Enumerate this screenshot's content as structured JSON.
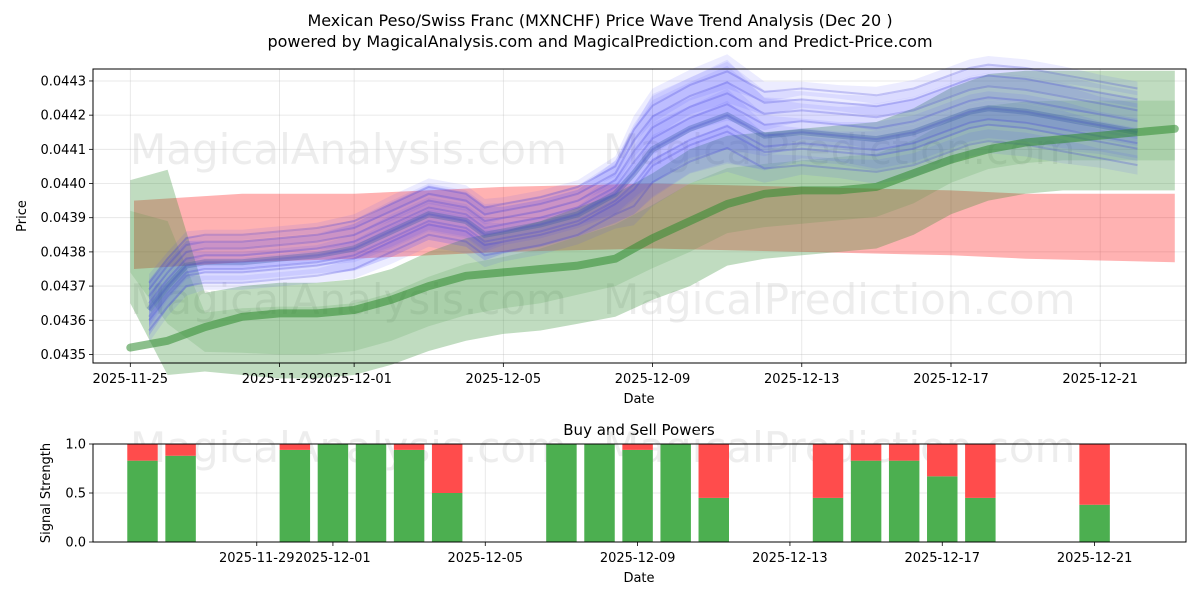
{
  "chart_data": [
    {
      "type": "line",
      "title_line1": "Mexican Peso/Swiss Franc (MXNCHF) Price Wave Trend Analysis (Dec 20 )",
      "title_line2": "powered by MagicalAnalysis.com and MagicalPrediction.com and Predict-Price.com",
      "xlabel": "Date",
      "ylabel": "Price",
      "xlim_day": [
        -1,
        28.3
      ],
      "ylim": [
        0.043475,
        0.044335
      ],
      "x_ticks": [
        {
          "day": 0,
          "label": "2025-11-25"
        },
        {
          "day": 4,
          "label": "2025-11-29"
        },
        {
          "day": 6,
          "label": "2025-12-01"
        },
        {
          "day": 10,
          "label": "2025-12-05"
        },
        {
          "day": 14,
          "label": "2025-12-09"
        },
        {
          "day": 18,
          "label": "2025-12-13"
        },
        {
          "day": 22,
          "label": "2025-12-17"
        },
        {
          "day": 26,
          "label": "2025-12-21"
        }
      ],
      "y_ticks": [
        {
          "value": 0.0435,
          "label": "0.0435"
        },
        {
          "value": 0.0436,
          "label": "0.0436"
        },
        {
          "value": 0.0437,
          "label": "0.0437"
        },
        {
          "value": 0.0438,
          "label": "0.0438"
        },
        {
          "value": 0.0439,
          "label": "0.0439"
        },
        {
          "value": 0.044,
          "label": "0.0440"
        },
        {
          "value": 0.0441,
          "label": "0.0441"
        },
        {
          "value": 0.0442,
          "label": "0.0442"
        },
        {
          "value": 0.0443,
          "label": "0.0443"
        }
      ],
      "series": [
        {
          "name": "Price band (red)",
          "color": "#ff0000",
          "x": [
            0.1,
            3,
            6,
            10,
            14,
            18,
            22,
            24,
            28
          ],
          "upper": [
            0.04395,
            0.04397,
            0.04397,
            0.04399,
            0.044,
            0.04399,
            0.04398,
            0.04397,
            0.04397
          ],
          "lower": [
            0.04375,
            0.04377,
            0.04378,
            0.0438,
            0.04381,
            0.0438,
            0.04379,
            0.04378,
            0.04377
          ]
        },
        {
          "name": "Trend line (green)",
          "color": "#2e8b2e",
          "x": [
            0,
            1,
            2,
            3,
            4,
            5,
            6,
            7,
            8,
            9,
            10,
            11,
            12,
            13,
            14,
            15,
            16,
            17,
            18,
            19,
            20,
            21,
            22,
            23,
            24,
            25,
            26,
            27,
            28
          ],
          "values": [
            0.04352,
            0.04354,
            0.04358,
            0.04361,
            0.04362,
            0.04362,
            0.04363,
            0.04366,
            0.0437,
            0.04373,
            0.04374,
            0.04375,
            0.04376,
            0.04378,
            0.04384,
            0.04389,
            0.04394,
            0.04397,
            0.04398,
            0.04398,
            0.04399,
            0.04403,
            0.04407,
            0.0441,
            0.04412,
            0.04413,
            0.04414,
            0.04415,
            0.04416
          ]
        },
        {
          "name": "Green band",
          "color": "#2e8b2e",
          "x": [
            0,
            1,
            2,
            3,
            4,
            5,
            6,
            7,
            8,
            9,
            10,
            11,
            12,
            13,
            14,
            15,
            16,
            17,
            18,
            19,
            20,
            21,
            22,
            23,
            24,
            25,
            26,
            27,
            28
          ],
          "upper": [
            0.04401,
            0.04404,
            0.04368,
            0.0437,
            0.04371,
            0.04371,
            0.04372,
            0.04375,
            0.0438,
            0.04384,
            0.04386,
            0.04389,
            0.04393,
            0.04397,
            0.04403,
            0.0441,
            0.04414,
            0.04415,
            0.04416,
            0.04417,
            0.04418,
            0.04422,
            0.04428,
            0.04432,
            0.04433,
            0.04433,
            0.04433,
            0.04433,
            0.04433
          ],
          "lower": [
            0.04365,
            0.04344,
            0.04345,
            0.04344,
            0.04343,
            0.04343,
            0.04344,
            0.04347,
            0.04351,
            0.04354,
            0.04356,
            0.04357,
            0.04359,
            0.04361,
            0.04366,
            0.0437,
            0.04376,
            0.04378,
            0.04379,
            0.0438,
            0.04381,
            0.04385,
            0.04391,
            0.04395,
            0.04397,
            0.04398,
            0.04398,
            0.04398,
            0.04398
          ]
        },
        {
          "name": "Wave forecast (blue)",
          "color": "#4444ff",
          "x": [
            0.5,
            1,
            1.5,
            2,
            3,
            4,
            5,
            6,
            7,
            8,
            9,
            9.5,
            10,
            11,
            12,
            13,
            13.5,
            14,
            15,
            16,
            17,
            18,
            19,
            20,
            21,
            22,
            22.5,
            23,
            24,
            25,
            26,
            27
          ],
          "values": [
            0.04363,
            0.0437,
            0.04376,
            0.04377,
            0.04377,
            0.04378,
            0.04379,
            0.04381,
            0.04386,
            0.04391,
            0.04389,
            0.04385,
            0.04386,
            0.04388,
            0.04391,
            0.04397,
            0.04403,
            0.0441,
            0.04416,
            0.0442,
            0.04414,
            0.04415,
            0.04414,
            0.04413,
            0.04415,
            0.04419,
            0.04421,
            0.04422,
            0.04421,
            0.04419,
            0.04417,
            0.04415
          ],
          "spread": [
            5e-05,
            4e-05,
            4e-05,
            3e-05,
            3e-05,
            3e-05,
            3e-05,
            4e-05,
            5e-05,
            5e-05,
            5e-05,
            5e-05,
            4e-05,
            4e-05,
            4e-05,
            6e-05,
            8e-05,
            0.0001,
            9e-05,
            0.0001,
            6e-05,
            4e-05,
            4e-05,
            5e-05,
            5e-05,
            5e-05,
            5e-05,
            5e-05,
            5e-05,
            5e-05,
            4e-05,
            4e-05
          ]
        }
      ]
    },
    {
      "type": "bar",
      "title": "Buy and Sell Powers",
      "xlabel": "Date",
      "ylabel": "Signal Strength",
      "xlim_day": [
        -0.3,
        28.4
      ],
      "ylim": [
        0,
        1
      ],
      "y_ticks": [
        {
          "value": 0.0,
          "label": "0.0"
        },
        {
          "value": 0.5,
          "label": "0.5"
        },
        {
          "value": 1.0,
          "label": "1.0"
        }
      ],
      "x_ticks": [
        {
          "day": 4,
          "label": "2025-11-29"
        },
        {
          "day": 6,
          "label": "2025-12-01"
        },
        {
          "day": 10,
          "label": "2025-12-05"
        },
        {
          "day": 14,
          "label": "2025-12-09"
        },
        {
          "day": 18,
          "label": "2025-12-13"
        },
        {
          "day": 22,
          "label": "2025-12-17"
        },
        {
          "day": 26,
          "label": "2025-12-21"
        }
      ],
      "colors": {
        "buy": "#4caf50",
        "sell": "#ff4c4c"
      },
      "bars": [
        {
          "day": 1,
          "buy": 0.83,
          "sell": 0.17
        },
        {
          "day": 2,
          "buy": 0.88,
          "sell": 0.12
        },
        {
          "day": 5,
          "buy": 0.94,
          "sell": 0.06
        },
        {
          "day": 6,
          "buy": 1.0,
          "sell": 0.0
        },
        {
          "day": 7,
          "buy": 1.0,
          "sell": 0.0
        },
        {
          "day": 8,
          "buy": 0.94,
          "sell": 0.06
        },
        {
          "day": 9,
          "buy": 0.5,
          "sell": 0.5
        },
        {
          "day": 12,
          "buy": 1.0,
          "sell": 0.0
        },
        {
          "day": 13,
          "buy": 1.0,
          "sell": 0.0
        },
        {
          "day": 14,
          "buy": 0.94,
          "sell": 0.06
        },
        {
          "day": 15,
          "buy": 1.0,
          "sell": 0.0
        },
        {
          "day": 16,
          "buy": 0.45,
          "sell": 0.55
        },
        {
          "day": 19,
          "buy": 0.45,
          "sell": 0.55
        },
        {
          "day": 20,
          "buy": 0.83,
          "sell": 0.17
        },
        {
          "day": 21,
          "buy": 0.83,
          "sell": 0.17
        },
        {
          "day": 22,
          "buy": 0.67,
          "sell": 0.33
        },
        {
          "day": 23,
          "buy": 0.45,
          "sell": 0.55
        },
        {
          "day": 26,
          "buy": 0.38,
          "sell": 0.62
        }
      ]
    }
  ],
  "watermarks": [
    "MagicalAnalysis.com",
    "MagicalPrediction.com"
  ]
}
